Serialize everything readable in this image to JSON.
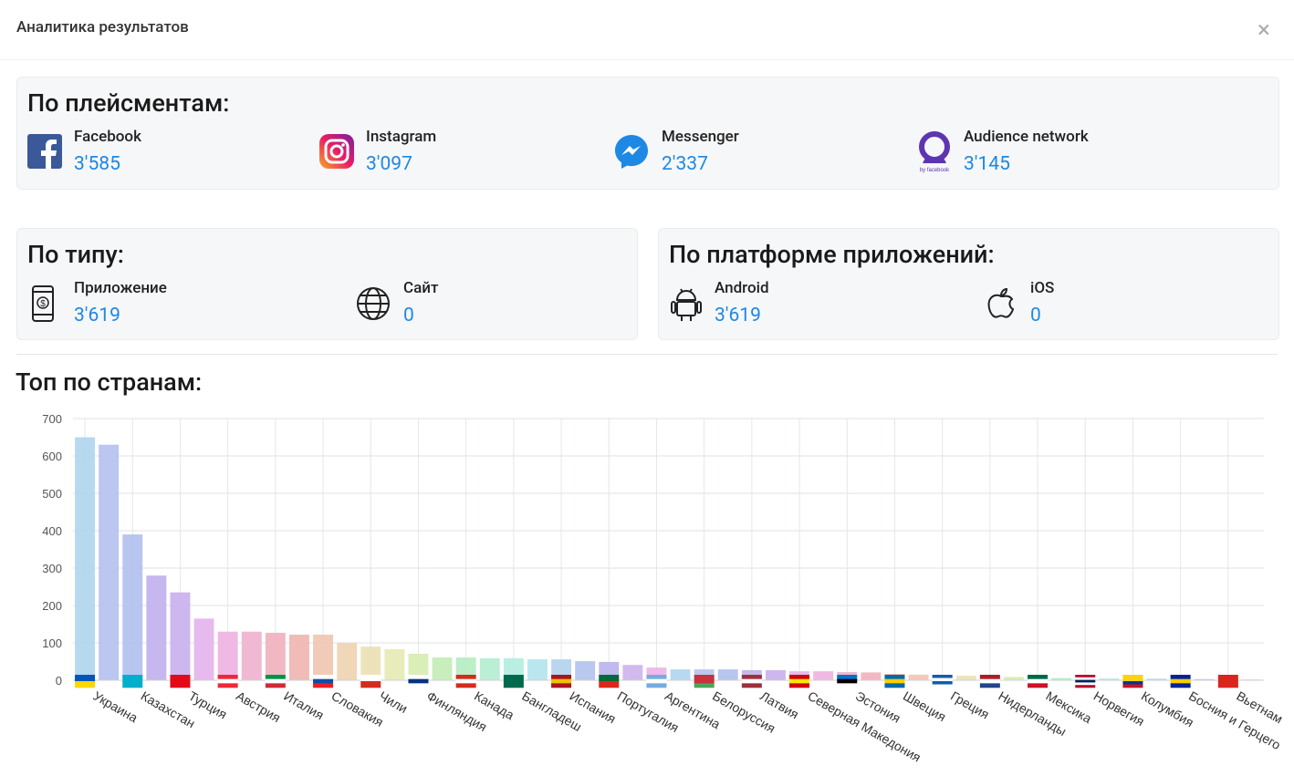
{
  "header": {
    "title": "Аналитика результатов",
    "close": "×"
  },
  "placements": {
    "title": "По плейсментам:",
    "items": [
      {
        "label": "Facebook",
        "value": "3'585"
      },
      {
        "label": "Instagram",
        "value": "3'097"
      },
      {
        "label": "Messenger",
        "value": "2'337"
      },
      {
        "label": "Audience network",
        "value": "3'145"
      }
    ]
  },
  "by_type": {
    "title": "По типу:",
    "items": [
      {
        "label": "Приложение",
        "value": "3'619"
      },
      {
        "label": "Сайт",
        "value": "0"
      }
    ]
  },
  "by_platform": {
    "title": "По платформе приложений:",
    "items": [
      {
        "label": "Android",
        "value": "3'619"
      },
      {
        "label": "iOS",
        "value": "0"
      }
    ]
  },
  "countries_title": "Топ по странам:",
  "chart_data": {
    "type": "bar",
    "categories": [
      "Украина",
      null,
      "Казахстан",
      null,
      "Турция",
      null,
      "Австрия",
      null,
      "Италия",
      null,
      "Словакия",
      null,
      "Чили",
      null,
      "Финляндия",
      null,
      "Канада",
      null,
      "Бангладеш",
      null,
      "Испания",
      null,
      "Португалия",
      null,
      "Аргентина",
      null,
      "Белоруссия",
      null,
      "Латвия",
      null,
      "Северная Македония",
      null,
      "Эстония",
      null,
      "Швеция",
      null,
      "Греция",
      null,
      "Нидерланды",
      null,
      "Мексика",
      null,
      "Норвегия",
      null,
      "Колумбия",
      null,
      "Босния и Герцего",
      null,
      "Вьетнам",
      null
    ],
    "values": [
      650,
      630,
      390,
      280,
      235,
      165,
      130,
      130,
      127,
      122,
      122,
      100,
      90,
      83,
      71,
      61,
      61,
      59,
      59,
      56,
      56,
      51,
      49,
      41,
      34,
      29,
      29,
      29,
      27,
      27,
      24,
      24,
      22,
      21,
      17,
      15,
      12,
      12,
      10,
      9,
      8,
      6,
      5,
      5,
      4,
      4,
      3,
      3,
      2,
      2
    ],
    "colors": [
      "#b3d7ee",
      "#b7c3f0",
      "#b4c2ee",
      "#c3b3ee",
      "#cbb2ee",
      "#e5b6ee",
      "#efb5e2",
      "#f0b4d2",
      "#f0b4c0",
      "#f0b7b4",
      "#f0c7b4",
      "#efd5b4",
      "#ece1b6",
      "#e6ebb6",
      "#d8edb4",
      "#c5edb7",
      "#b8edc4",
      "#b6edd3",
      "#b6ede2",
      "#b6e6ee",
      "#b6d4ee",
      "#b6c5ee",
      "#bdb6ee",
      "#d0b6ee",
      "#edb6e8"
    ],
    "ylim": [
      0,
      700
    ],
    "yticks": [
      0,
      100,
      200,
      300,
      400,
      500,
      600,
      700
    ],
    "grid": true
  }
}
